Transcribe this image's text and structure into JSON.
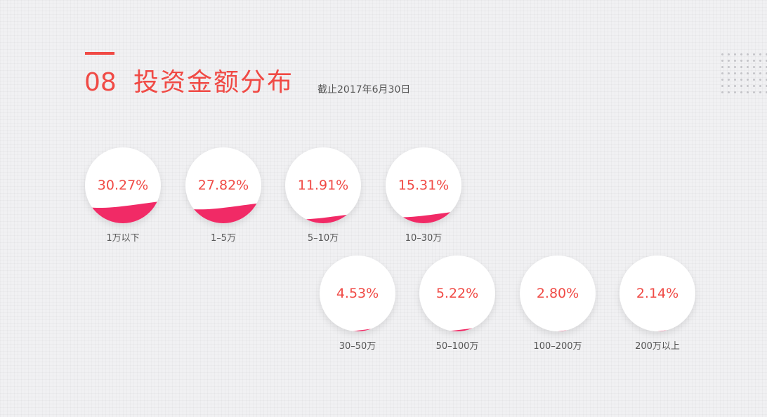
{
  "header": {
    "number": "08",
    "title": "投资金额分布",
    "subtitle": "截止2017年6月30日"
  },
  "colors": {
    "accent": "#f04a45",
    "fill": "#f12a66",
    "text_gray": "#555555"
  },
  "chart_data": {
    "type": "bubble",
    "title": "投资金额分布",
    "unit": "%",
    "categories": [
      "1万以下",
      "1–5万",
      "5–10万",
      "10–30万",
      "30–50万",
      "50–100万",
      "100–200万",
      "200万以上"
    ],
    "values": [
      30.27,
      27.82,
      11.91,
      15.31,
      4.53,
      5.22,
      2.8,
      2.14
    ],
    "value_labels": [
      "30.27%",
      "27.82%",
      "11.91%",
      "15.31%",
      "4.53%",
      "5.22%",
      "2.80%",
      "2.14%"
    ]
  }
}
